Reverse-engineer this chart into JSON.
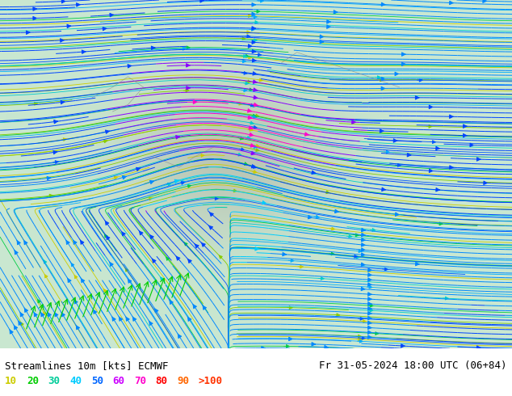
{
  "title_left": "Streamlines 10m [kts] ECMWF",
  "title_right": "Fr 31-05-2024 18:00 UTC (06+84)",
  "legend_values": [
    "10",
    "20",
    "30",
    "40",
    "50",
    "60",
    "70",
    "80",
    "90",
    ">100"
  ],
  "legend_colors": [
    "#cccc00",
    "#00cc00",
    "#00cc99",
    "#00ccff",
    "#0066ff",
    "#cc00ff",
    "#ff00cc",
    "#ff0000",
    "#ff6600",
    "#ff3300"
  ],
  "bg_color": "#ffffff",
  "map_bg": "#e8f4e8",
  "streamline_color_slow": "#cccc00",
  "streamline_color_fast": "#00ff00",
  "figsize": [
    6.34,
    4.9
  ],
  "dpi": 100
}
